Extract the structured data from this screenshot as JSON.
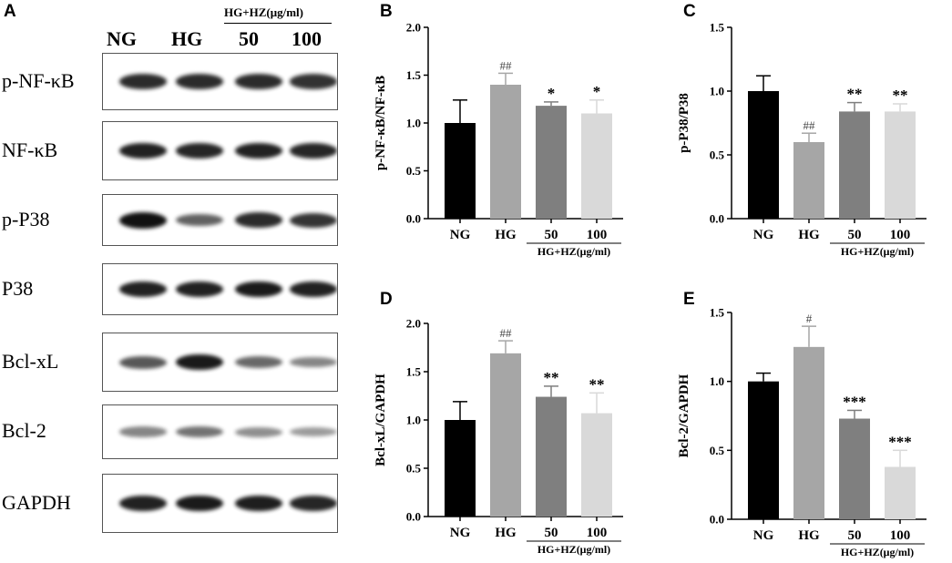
{
  "panel_a": {
    "letter": "A",
    "lanes": [
      "NG",
      "HG",
      "50",
      "100"
    ],
    "treatment_label": "HG+HZ(μg/ml)",
    "blots": [
      {
        "label": "p-NF-κB",
        "intensity": [
          0.85,
          0.85,
          0.85,
          0.82
        ]
      },
      {
        "label": "NF-κB",
        "intensity": [
          0.9,
          0.88,
          0.9,
          0.88
        ]
      },
      {
        "label": "p-P38",
        "intensity": [
          1.0,
          0.55,
          0.85,
          0.8
        ]
      },
      {
        "label": "P38",
        "intensity": [
          0.9,
          0.9,
          0.95,
          0.9
        ]
      },
      {
        "label": "Bcl-xL",
        "intensity": [
          0.6,
          0.95,
          0.5,
          0.35
        ]
      },
      {
        "label": "Bcl-2",
        "intensity": [
          0.35,
          0.45,
          0.3,
          0.22
        ]
      },
      {
        "label": "GAPDH",
        "intensity": [
          0.9,
          0.95,
          0.92,
          0.88
        ]
      }
    ]
  },
  "chart_data": [
    {
      "panel": "B",
      "type": "bar",
      "categories": [
        "NG",
        "HG",
        "50",
        "100"
      ],
      "values": [
        1.0,
        1.4,
        1.18,
        1.1
      ],
      "errors": [
        0.24,
        0.12,
        0.04,
        0.14
      ],
      "annotations": [
        "",
        "##",
        "*",
        "*"
      ],
      "colors": [
        "#000000",
        "#a6a6a6",
        "#7f7f7f",
        "#d9d9d9"
      ],
      "ylabel": "p-NF-κB/NF-κB",
      "ylim": [
        0,
        2.0
      ],
      "yticks": [
        "0.0",
        "0.5",
        "1.0",
        "1.5",
        "2.0"
      ],
      "group_label": "HG+HZ(μg/ml)"
    },
    {
      "panel": "C",
      "type": "bar",
      "categories": [
        "NG",
        "HG",
        "50",
        "100"
      ],
      "values": [
        1.0,
        0.6,
        0.84,
        0.84
      ],
      "errors": [
        0.12,
        0.07,
        0.07,
        0.06
      ],
      "annotations": [
        "",
        "##",
        "**",
        "**"
      ],
      "colors": [
        "#000000",
        "#a6a6a6",
        "#7f7f7f",
        "#d9d9d9"
      ],
      "ylabel": "p-P38/P38",
      "ylim": [
        0,
        1.5
      ],
      "yticks": [
        "0.0",
        "0.5",
        "1.0",
        "1.5"
      ],
      "group_label": "HG+HZ(μg/ml)"
    },
    {
      "panel": "D",
      "type": "bar",
      "categories": [
        "NG",
        "HG",
        "50",
        "100"
      ],
      "values": [
        1.0,
        1.69,
        1.24,
        1.07
      ],
      "errors": [
        0.19,
        0.13,
        0.11,
        0.21
      ],
      "annotations": [
        "",
        "##",
        "**",
        "**"
      ],
      "colors": [
        "#000000",
        "#a6a6a6",
        "#7f7f7f",
        "#d9d9d9"
      ],
      "ylabel": "Bcl-xL/GAPDH",
      "ylim": [
        0,
        2.0
      ],
      "yticks": [
        "0.0",
        "0.5",
        "1.0",
        "1.5",
        "2.0"
      ],
      "group_label": "HG+HZ(μg/ml)"
    },
    {
      "panel": "E",
      "type": "bar",
      "categories": [
        "NG",
        "HG",
        "50",
        "100"
      ],
      "values": [
        1.0,
        1.25,
        0.73,
        0.38
      ],
      "errors": [
        0.06,
        0.15,
        0.06,
        0.12
      ],
      "annotations": [
        "",
        "#",
        "***",
        "***"
      ],
      "colors": [
        "#000000",
        "#a6a6a6",
        "#7f7f7f",
        "#d9d9d9"
      ],
      "ylabel": "Bcl-2/GAPDH",
      "ylim": [
        0,
        1.5
      ],
      "yticks": [
        "0.0",
        "0.5",
        "1.0",
        "1.5"
      ],
      "group_label": "HG+HZ(μg/ml)"
    }
  ]
}
